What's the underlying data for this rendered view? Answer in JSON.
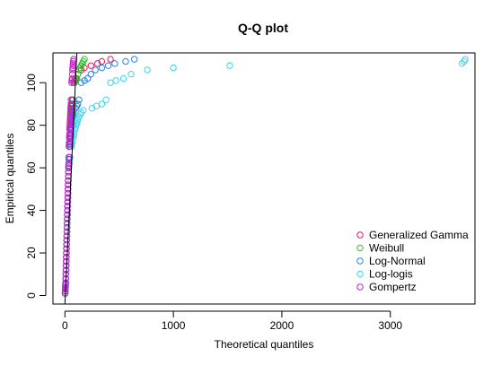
{
  "chart_data": {
    "type": "scatter",
    "title": "Q-Q plot",
    "xlabel": "Theoretical quantiles",
    "ylabel": "Empirical quantiles",
    "xlim": [
      -110,
      3780
    ],
    "ylim": [
      -4,
      114
    ],
    "x_ticks": [
      0,
      1000,
      2000,
      3000
    ],
    "y_ticks": [
      0,
      20,
      40,
      60,
      80,
      100
    ],
    "grid": false,
    "legend_position": "bottom-right",
    "reference_line": {
      "x1": 0,
      "y1": -4,
      "x2": 110,
      "y2": 114
    },
    "point_marker": "open-circle",
    "empirical_quantiles": [
      1,
      2,
      3,
      4,
      5,
      6,
      8,
      10,
      12,
      14,
      16,
      18,
      20,
      22,
      24,
      26,
      28,
      30,
      32,
      34,
      36,
      38,
      40,
      42,
      44,
      46,
      48,
      50,
      52,
      54,
      56,
      58,
      60,
      61,
      62,
      64,
      65,
      70,
      71,
      72,
      74,
      75,
      76,
      78,
      79,
      80,
      81,
      82,
      83,
      84,
      85,
      86,
      87,
      88,
      89,
      90,
      92,
      100,
      101,
      102,
      104,
      106,
      107,
      108,
      109,
      110,
      111
    ],
    "series": [
      {
        "name": "Generalized Gamma",
        "color": "#E8175D",
        "x": [
          2,
          3,
          4,
          5,
          6,
          7,
          8,
          9,
          10,
          11,
          12,
          13,
          14,
          15,
          16,
          17,
          18,
          19,
          20,
          21,
          22,
          23,
          24,
          25,
          26,
          27,
          28,
          29,
          30,
          31,
          32,
          33,
          34,
          35,
          36,
          37,
          38,
          39,
          40,
          42,
          43,
          44,
          45,
          46,
          47,
          48,
          49,
          50,
          51,
          52,
          54,
          56,
          58,
          60,
          62,
          64,
          68,
          80,
          90,
          100,
          120,
          150,
          180,
          240,
          300,
          340,
          420
        ]
      },
      {
        "name": "Weibull",
        "color": "#27C227",
        "x": [
          2,
          3,
          4,
          5,
          6,
          7,
          8,
          9,
          10,
          11,
          12,
          13,
          14,
          15,
          16,
          17,
          18,
          19,
          20,
          21,
          22,
          23,
          24,
          25,
          26,
          27,
          28,
          29,
          30,
          31,
          32,
          33,
          34,
          35,
          36,
          37,
          38,
          39,
          40,
          42,
          44,
          46,
          48,
          50,
          52,
          54,
          56,
          58,
          60,
          62,
          64,
          66,
          68,
          70,
          72,
          74,
          78,
          90,
          100,
          110,
          120,
          130,
          140,
          150,
          160,
          170,
          180
        ]
      },
      {
        "name": "Log-Normal",
        "color": "#2A7FE0",
        "x": [
          3,
          4,
          5,
          6,
          7,
          8,
          9,
          10,
          11,
          12,
          13,
          14,
          15,
          16,
          17,
          18,
          19,
          20,
          21,
          22,
          23,
          24,
          25,
          26,
          27,
          28,
          29,
          30,
          31,
          32,
          33,
          34,
          36,
          38,
          40,
          42,
          44,
          48,
          50,
          52,
          54,
          56,
          58,
          60,
          62,
          64,
          66,
          68,
          70,
          72,
          74,
          76,
          80,
          100,
          110,
          120,
          130,
          150,
          180,
          210,
          240,
          280,
          340,
          400,
          460,
          560,
          640
        ]
      },
      {
        "name": "Log-logis",
        "color": "#3FD3F0",
        "x": [
          2,
          3,
          4,
          5,
          6,
          7,
          8,
          9,
          10,
          11,
          12,
          13,
          14,
          15,
          16,
          17,
          18,
          19,
          20,
          21,
          22,
          23,
          24,
          25,
          26,
          27,
          28,
          29,
          30,
          31,
          32,
          34,
          36,
          38,
          40,
          44,
          48,
          60,
          64,
          68,
          74,
          80,
          86,
          92,
          98,
          104,
          110,
          116,
          122,
          130,
          140,
          150,
          170,
          250,
          290,
          340,
          380,
          420,
          470,
          540,
          610,
          760,
          1000,
          1520,
          3660,
          3680,
          3690
        ]
      },
      {
        "name": "Gompertz",
        "color": "#C81EC8",
        "x": [
          1,
          2,
          3,
          4,
          5,
          6,
          7,
          8,
          9,
          10,
          11,
          12,
          13,
          14,
          15,
          16,
          17,
          18,
          19,
          20,
          21,
          22,
          23,
          24,
          25,
          26,
          27,
          28,
          29,
          30,
          31,
          32,
          33,
          34,
          35,
          36,
          37,
          38,
          39,
          40,
          41,
          42,
          43,
          44,
          45,
          46,
          47,
          48,
          49,
          50,
          51,
          52,
          53,
          54,
          55,
          56,
          57,
          62,
          64,
          66,
          68,
          70,
          72,
          74,
          76,
          78,
          80
        ]
      }
    ]
  }
}
